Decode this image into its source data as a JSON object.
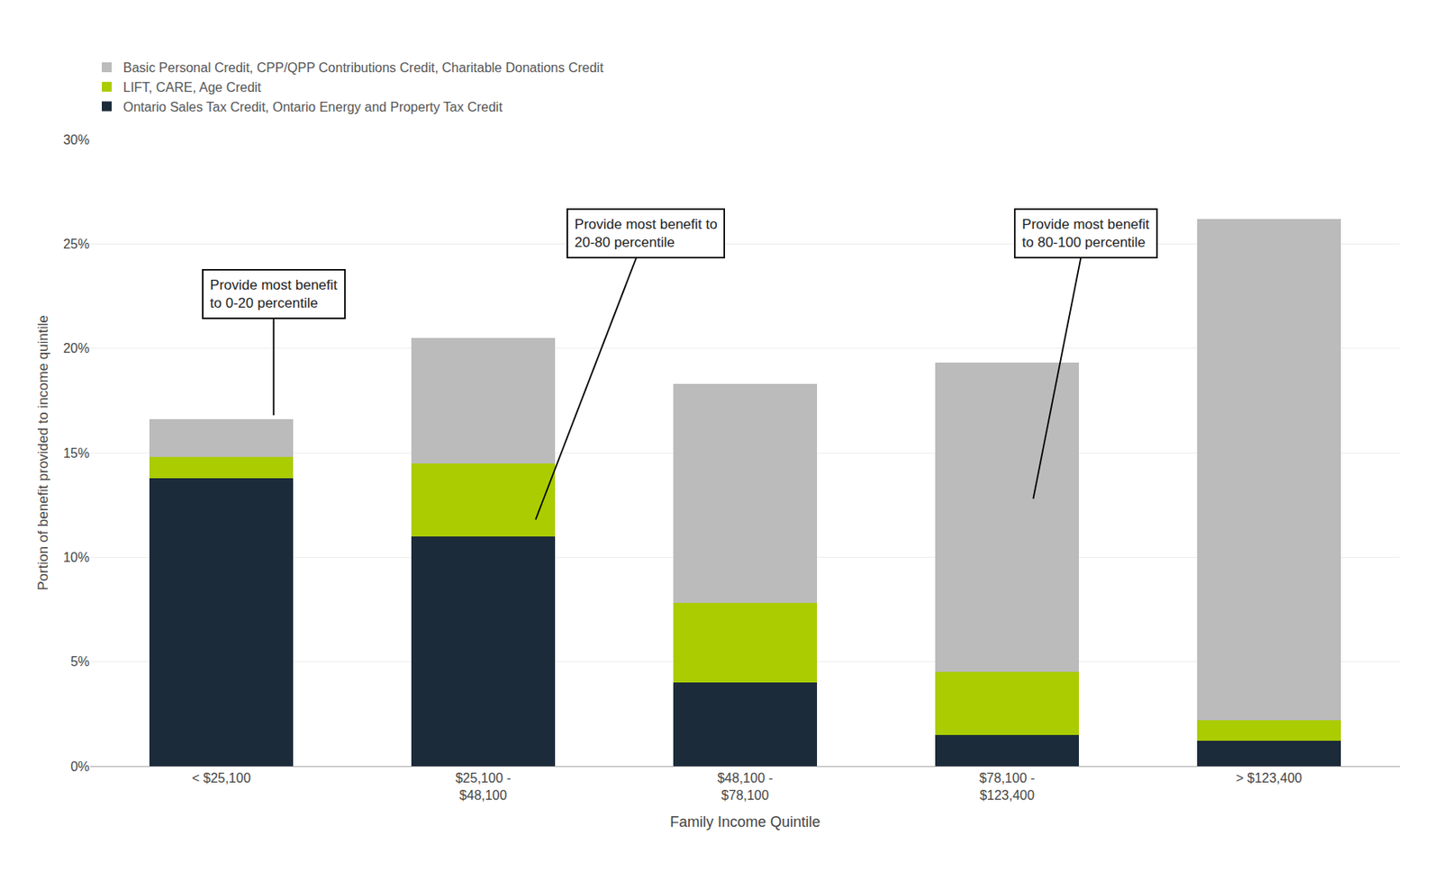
{
  "chart_data": {
    "type": "bar",
    "stacked": true,
    "categories": [
      "< $25,100",
      "$25,100 -\n$48,100",
      "$48,100 -\n$78,100",
      "$78,100 -\n$123,400",
      "> $123,400"
    ],
    "series": [
      {
        "name": "Ontario Sales Tax Credit, Ontario Energy and Property Tax Credit",
        "color": "#1C2B3A",
        "values": [
          13.8,
          11.0,
          4.0,
          1.5,
          1.2
        ]
      },
      {
        "name": "LIFT, CARE, Age Credit",
        "color": "#AACC00",
        "values": [
          1.0,
          3.5,
          3.8,
          3.0,
          1.0
        ]
      },
      {
        "name": "Basic Personal Credit, CPP/QPP Contributions Credit, Charitable Donations Credit",
        "color": "#BBBBBB",
        "values": [
          1.8,
          6.0,
          10.5,
          14.8,
          24.0
        ]
      }
    ],
    "xlabel": "Family Income Quintile",
    "ylabel": "Portion of benefit provided to income quintile",
    "ylim": [
      0,
      30
    ],
    "yticks": [
      {
        "value": 0,
        "label": "0%"
      },
      {
        "value": 5,
        "label": "5%"
      },
      {
        "value": 10,
        "label": "10%"
      },
      {
        "value": 15,
        "label": "15%"
      },
      {
        "value": 20,
        "label": "20%"
      },
      {
        "value": 25,
        "label": "25%"
      },
      {
        "value": 30,
        "label": "30%"
      }
    ],
    "grid": true,
    "legend": "top left",
    "annotations": [
      "Provide most benefit\nto 0-20 percentile",
      "Provide most benefit to\n20-80 percentile",
      "Provide most benefit\nto 80-100 percentile"
    ]
  }
}
